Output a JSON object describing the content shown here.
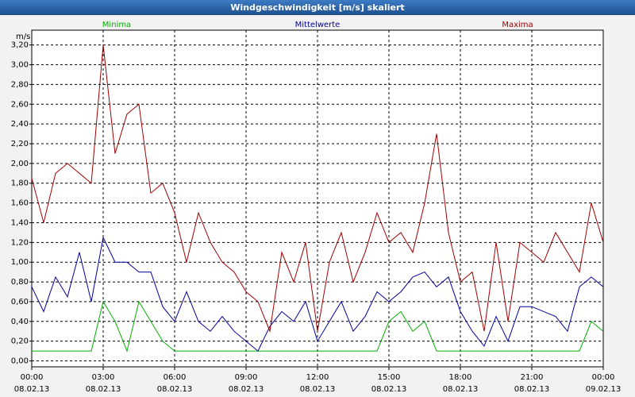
{
  "chart_data": {
    "type": "line",
    "title": "Windgeschwindigkeit [m/s] skaliert",
    "y_unit": "m/s",
    "x": [
      0,
      0.5,
      1,
      1.5,
      2,
      2.5,
      3,
      3.5,
      4,
      4.5,
      5,
      5.5,
      6,
      6.5,
      7,
      7.5,
      8,
      8.5,
      9,
      9.5,
      10,
      10.5,
      11,
      11.5,
      12,
      12.5,
      13,
      13.5,
      14,
      14.5,
      15,
      15.5,
      16,
      16.5,
      17,
      17.5,
      18,
      18.5,
      19,
      19.5,
      20,
      20.5,
      21,
      21.5,
      22,
      22.5,
      23,
      23.5,
      24
    ],
    "xlim": [
      0,
      24
    ],
    "xticks": [
      {
        "value": 0,
        "label": "00:00",
        "date": "08.02.13"
      },
      {
        "value": 3,
        "label": "03:00",
        "date": "08.02.13"
      },
      {
        "value": 6,
        "label": "06:00",
        "date": "08.02.13"
      },
      {
        "value": 9,
        "label": "09:00",
        "date": "08.02.13"
      },
      {
        "value": 12,
        "label": "12:00",
        "date": "08.02.13"
      },
      {
        "value": 15,
        "label": "15:00",
        "date": "08.02.13"
      },
      {
        "value": 18,
        "label": "18:00",
        "date": "08.02.13"
      },
      {
        "value": 21,
        "label": "21:00",
        "date": "08.02.13"
      },
      {
        "value": 24,
        "label": "00:00",
        "date": "09.02.13"
      }
    ],
    "ylim": [
      -0.06,
      3.35
    ],
    "yticks": [
      {
        "value": 0,
        "label": "0,00"
      },
      {
        "value": 0.2,
        "label": "0,20"
      },
      {
        "value": 0.4,
        "label": "0,40"
      },
      {
        "value": 0.6,
        "label": "0,60"
      },
      {
        "value": 0.8,
        "label": "0,80"
      },
      {
        "value": 1,
        "label": "1,00"
      },
      {
        "value": 1.2,
        "label": "1,20"
      },
      {
        "value": 1.4,
        "label": "1,40"
      },
      {
        "value": 1.6,
        "label": "1,60"
      },
      {
        "value": 1.8,
        "label": "1,80"
      },
      {
        "value": 2,
        "label": "2,00"
      },
      {
        "value": 2.2,
        "label": "2,20"
      },
      {
        "value": 2.4,
        "label": "2,40"
      },
      {
        "value": 2.6,
        "label": "2,60"
      },
      {
        "value": 2.8,
        "label": "2,80"
      },
      {
        "value": 3,
        "label": "3,00"
      },
      {
        "value": 3.2,
        "label": "3,20"
      }
    ],
    "grid": true,
    "series": [
      {
        "name": "Minima",
        "color": "#00b000",
        "values": [
          0.1,
          0.1,
          0.1,
          0.1,
          0.1,
          0.1,
          0.6,
          0.4,
          0.1,
          0.6,
          0.4,
          0.2,
          0.1,
          0.1,
          0.1,
          0.1,
          0.1,
          0.1,
          0.1,
          0.1,
          0.1,
          0.1,
          0.1,
          0.1,
          0.1,
          0.1,
          0.1,
          0.1,
          0.1,
          0.1,
          0.4,
          0.5,
          0.3,
          0.4,
          0.1,
          0.1,
          0.1,
          0.1,
          0.1,
          0.1,
          0.1,
          0.1,
          0.1,
          0.1,
          0.1,
          0.1,
          0.1,
          0.4,
          0.3
        ]
      },
      {
        "name": "Mittelwerte",
        "color": "#0000a0",
        "values": [
          0.75,
          0.5,
          0.85,
          0.65,
          1.1,
          0.6,
          1.25,
          1.0,
          1.0,
          0.9,
          0.9,
          0.55,
          0.4,
          0.7,
          0.4,
          0.3,
          0.45,
          0.3,
          0.2,
          0.1,
          0.35,
          0.5,
          0.4,
          0.6,
          0.2,
          0.4,
          0.6,
          0.3,
          0.45,
          0.7,
          0.6,
          0.7,
          0.85,
          0.9,
          0.75,
          0.85,
          0.5,
          0.3,
          0.15,
          0.45,
          0.2,
          0.55,
          0.55,
          0.5,
          0.45,
          0.3,
          0.75,
          0.85,
          0.75
        ]
      },
      {
        "name": "Maxima",
        "color": "#a00000",
        "values": [
          1.85,
          1.4,
          1.9,
          2.0,
          1.9,
          1.8,
          3.2,
          2.1,
          2.5,
          2.6,
          1.7,
          1.8,
          1.5,
          1.0,
          1.5,
          1.2,
          1.0,
          0.9,
          0.7,
          0.6,
          0.3,
          1.1,
          0.8,
          1.2,
          0.3,
          1.0,
          1.3,
          0.8,
          1.1,
          1.5,
          1.2,
          1.3,
          1.1,
          1.6,
          2.3,
          1.3,
          0.8,
          0.9,
          0.3,
          1.2,
          0.4,
          1.2,
          1.1,
          1.0,
          1.3,
          1.1,
          0.9,
          1.6,
          1.2
        ]
      }
    ]
  }
}
